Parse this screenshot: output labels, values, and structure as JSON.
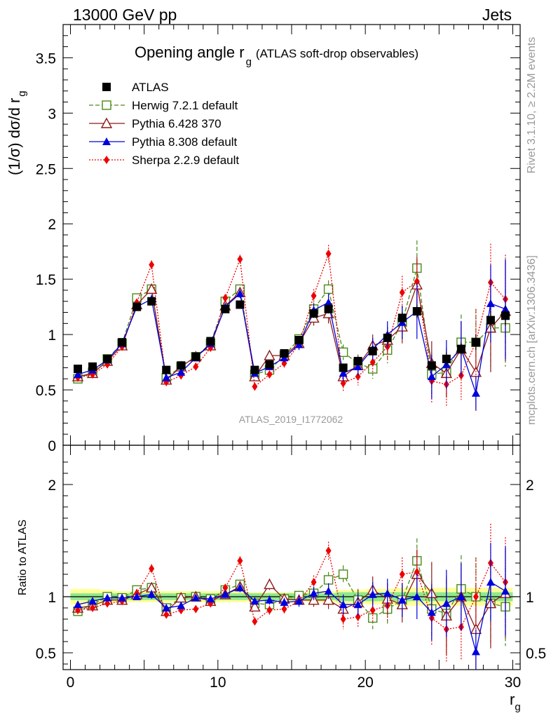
{
  "header": {
    "process": "13000 GeV pp",
    "category": "Jets"
  },
  "side_text": {
    "rivet": "Rivet 3.1.10, ≥ 2.2M events",
    "mcplots": "mcplots.cern.ch [arXiv:1306.3436]"
  },
  "watermark": "ATLAS_2019_I1772062",
  "chart_data": [
    {
      "type": "scatter",
      "title_main": "Opening angle r",
      "title_sub": "g",
      "title_tail": "(ATLAS soft-drop observables)",
      "ylabel": "(1/σ) dσ/d r",
      "ylabel_sub": "g",
      "xlim": [
        -0.5,
        30.5
      ],
      "ylim": [
        0,
        3.8
      ],
      "yticks": [
        0,
        0.5,
        1,
        1.5,
        2,
        2.5,
        3,
        3.5
      ],
      "ytick_labels": [
        "0",
        "0.5",
        "1",
        "1.5",
        "2",
        "2.5",
        "3",
        "3.5"
      ],
      "x": [
        0.5,
        1.5,
        2.5,
        3.5,
        4.5,
        5.5,
        6.5,
        7.5,
        8.5,
        9.5,
        10.5,
        11.5,
        12.5,
        13.5,
        14.5,
        15.5,
        16.5,
        17.5,
        18.5,
        19.5,
        20.5,
        21.5,
        22.5,
        23.5,
        24.5,
        25.5,
        26.5,
        27.5,
        28.5,
        29.5
      ],
      "legend": [
        {
          "name": "ATLAS",
          "color": "#000000",
          "marker": "square-filled",
          "dash": ""
        },
        {
          "name": "Herwig 7.2.1 default",
          "color": "#4a8a1a",
          "marker": "square-open",
          "dash": "6,3"
        },
        {
          "name": "Pythia 6.428 370",
          "color": "#8b1a1a",
          "marker": "triangle-open",
          "dash": ""
        },
        {
          "name": "Pythia 8.308 default",
          "color": "#0000dd",
          "marker": "triangle-filled",
          "dash": ""
        },
        {
          "name": "Sherpa 2.2.9 default",
          "color": "#ee0000",
          "marker": "diamond-filled",
          "dash": "2,2"
        }
      ],
      "series": [
        {
          "name": "ATLAS",
          "values": [
            0.69,
            0.71,
            0.78,
            0.93,
            1.25,
            1.3,
            0.68,
            0.72,
            0.8,
            0.94,
            1.23,
            1.27,
            0.68,
            0.73,
            0.83,
            0.95,
            1.19,
            1.23,
            0.7,
            0.76,
            0.85,
            0.97,
            1.15,
            1.21,
            0.72,
            0.78,
            0.87,
            0.93,
            1.13,
            1.17
          ],
          "err": [
            0.02,
            0.02,
            0.02,
            0.02,
            0.03,
            0.03,
            0.02,
            0.02,
            0.02,
            0.02,
            0.03,
            0.03,
            0.02,
            0.02,
            0.02,
            0.03,
            0.04,
            0.04,
            0.03,
            0.03,
            0.04,
            0.05,
            0.05,
            0.06,
            0.05,
            0.06,
            0.06,
            0.07,
            0.08,
            0.09
          ]
        },
        {
          "name": "Herwig 7.2.1 default",
          "values": [
            0.6,
            0.66,
            0.78,
            0.92,
            1.33,
            1.41,
            0.61,
            0.71,
            0.8,
            0.92,
            1.3,
            1.41,
            0.64,
            0.68,
            0.81,
            0.96,
            1.23,
            1.41,
            0.84,
            0.74,
            0.69,
            0.86,
            1.11,
            1.6,
            0.64,
            0.66,
            0.93,
            0.93,
            1.06,
            1.06
          ],
          "err": [
            0.02,
            0.02,
            0.02,
            0.02,
            0.03,
            0.04,
            0.02,
            0.02,
            0.02,
            0.02,
            0.03,
            0.04,
            0.02,
            0.03,
            0.03,
            0.04,
            0.06,
            0.08,
            0.07,
            0.08,
            0.09,
            0.12,
            0.15,
            0.25,
            0.2,
            0.22,
            0.25,
            0.3,
            0.35,
            0.35
          ]
        },
        {
          "name": "Pythia 6.428 370",
          "values": [
            0.62,
            0.65,
            0.76,
            0.9,
            1.27,
            1.41,
            0.59,
            0.71,
            0.8,
            0.9,
            1.26,
            1.38,
            0.62,
            0.81,
            0.81,
            0.92,
            1.15,
            1.19,
            0.62,
            0.72,
            0.9,
            0.95,
            1.07,
            1.45,
            0.74,
            0.65,
            0.87,
            0.66,
            1.06,
            1.21
          ],
          "err": [
            0.02,
            0.02,
            0.02,
            0.02,
            0.03,
            0.04,
            0.02,
            0.02,
            0.02,
            0.02,
            0.03,
            0.04,
            0.02,
            0.04,
            0.04,
            0.05,
            0.07,
            0.09,
            0.08,
            0.09,
            0.1,
            0.12,
            0.15,
            0.25,
            0.2,
            0.22,
            0.25,
            0.35,
            0.4,
            0.45
          ]
        },
        {
          "name": "Pythia 8.308 default",
          "values": [
            0.64,
            0.68,
            0.77,
            0.92,
            1.25,
            1.32,
            0.61,
            0.66,
            0.79,
            0.92,
            1.25,
            1.37,
            0.65,
            0.71,
            0.79,
            0.91,
            1.22,
            1.29,
            0.65,
            0.71,
            0.87,
            1.0,
            1.11,
            1.21,
            0.62,
            0.73,
            0.87,
            0.47,
            1.28,
            1.23
          ],
          "err": [
            0.02,
            0.02,
            0.02,
            0.02,
            0.03,
            0.04,
            0.02,
            0.02,
            0.02,
            0.02,
            0.03,
            0.04,
            0.02,
            0.03,
            0.04,
            0.05,
            0.06,
            0.08,
            0.07,
            0.08,
            0.1,
            0.12,
            0.15,
            0.25,
            0.2,
            0.22,
            0.25,
            0.15,
            0.35,
            0.45
          ]
        },
        {
          "name": "Sherpa 2.2.9 default",
          "values": [
            0.61,
            0.64,
            0.73,
            0.89,
            1.29,
            1.63,
            0.57,
            0.63,
            0.71,
            0.88,
            1.33,
            1.68,
            0.53,
            0.64,
            0.74,
            0.91,
            1.35,
            1.73,
            0.56,
            0.62,
            0.75,
            0.89,
            1.38,
            1.48,
            0.58,
            0.55,
            0.63,
            0.93,
            1.47,
            1.32
          ],
          "err": [
            0.02,
            0.02,
            0.02,
            0.02,
            0.03,
            0.04,
            0.02,
            0.02,
            0.02,
            0.02,
            0.03,
            0.04,
            0.02,
            0.03,
            0.04,
            0.05,
            0.06,
            0.08,
            0.07,
            0.08,
            0.1,
            0.12,
            0.15,
            0.2,
            0.2,
            0.2,
            0.22,
            0.3,
            0.35,
            0.4
          ]
        }
      ]
    },
    {
      "type": "scatter",
      "ylabel": "Ratio to ATLAS",
      "xlabel": "r",
      "xlabel_sub": "g",
      "xlim": [
        -0.5,
        30.5
      ],
      "ylim": [
        0.35,
        2.35
      ],
      "xticks": [
        0,
        10,
        20,
        30
      ],
      "xtick_labels": [
        "0",
        "10",
        "20",
        "30"
      ],
      "yticks": [
        0.5,
        1,
        2
      ],
      "ytick_labels": [
        "0.5",
        "1",
        "2"
      ],
      "band_inner": [
        0.03,
        0.03,
        0.03,
        0.03,
        0.03,
        0.03,
        0.03,
        0.03,
        0.03,
        0.03,
        0.03,
        0.03,
        0.03,
        0.03,
        0.03,
        0.03,
        0.03,
        0.03,
        0.04,
        0.04,
        0.04,
        0.04,
        0.04,
        0.04,
        0.04,
        0.04,
        0.04,
        0.04,
        0.04,
        0.04
      ],
      "band_outer": [
        0.07,
        0.07,
        0.06,
        0.05,
        0.05,
        0.05,
        0.05,
        0.05,
        0.05,
        0.05,
        0.05,
        0.05,
        0.04,
        0.04,
        0.04,
        0.04,
        0.05,
        0.05,
        0.06,
        0.06,
        0.07,
        0.07,
        0.08,
        0.08,
        0.08,
        0.08,
        0.08,
        0.08,
        0.08,
        0.08
      ],
      "series": [
        {
          "name": "Herwig 7.2.1 default",
          "values": [
            0.87,
            0.93,
            1.0,
            0.99,
            1.06,
            1.08,
            0.9,
            0.99,
            1.0,
            0.98,
            1.06,
            1.11,
            0.94,
            0.93,
            0.98,
            1.01,
            1.03,
            1.15,
            1.2,
            0.97,
            0.81,
            0.89,
            0.97,
            1.32,
            0.89,
            0.85,
            1.07,
            1.0,
            0.94,
            0.91
          ],
          "err": [
            0.03,
            0.03,
            0.03,
            0.03,
            0.03,
            0.04,
            0.03,
            0.03,
            0.03,
            0.03,
            0.03,
            0.04,
            0.03,
            0.04,
            0.04,
            0.04,
            0.05,
            0.07,
            0.08,
            0.1,
            0.1,
            0.13,
            0.15,
            0.2,
            0.25,
            0.3,
            0.3,
            0.35,
            0.35,
            0.35
          ]
        },
        {
          "name": "Pythia 6.428 370",
          "values": [
            0.9,
            0.92,
            0.97,
            0.97,
            1.02,
            1.08,
            0.87,
            0.99,
            1.0,
            0.96,
            1.02,
            1.09,
            0.91,
            1.11,
            0.98,
            0.97,
            0.97,
            0.97,
            0.89,
            0.95,
            1.06,
            0.98,
            0.93,
            1.2,
            1.03,
            0.83,
            1.0,
            0.71,
            0.94,
            1.03
          ],
          "err": [
            0.03,
            0.03,
            0.03,
            0.03,
            0.03,
            0.04,
            0.03,
            0.03,
            0.03,
            0.03,
            0.03,
            0.04,
            0.03,
            0.05,
            0.05,
            0.05,
            0.06,
            0.08,
            0.1,
            0.11,
            0.12,
            0.14,
            0.16,
            0.22,
            0.28,
            0.35,
            0.3,
            0.4,
            0.4,
            0.4
          ]
        },
        {
          "name": "Pythia 8.308 default",
          "values": [
            0.93,
            0.96,
            0.99,
            0.99,
            1.0,
            1.02,
            0.9,
            0.92,
            0.99,
            0.98,
            1.02,
            1.08,
            0.96,
            0.97,
            0.95,
            0.96,
            1.03,
            1.05,
            0.93,
            0.93,
            1.02,
            1.03,
            0.97,
            1.0,
            0.86,
            0.94,
            1.0,
            0.51,
            1.13,
            1.05
          ],
          "err": [
            0.03,
            0.03,
            0.03,
            0.03,
            0.03,
            0.04,
            0.03,
            0.03,
            0.03,
            0.03,
            0.03,
            0.04,
            0.03,
            0.04,
            0.04,
            0.05,
            0.06,
            0.07,
            0.09,
            0.1,
            0.11,
            0.13,
            0.15,
            0.2,
            0.25,
            0.3,
            0.3,
            0.2,
            0.35,
            0.4
          ]
        },
        {
          "name": "Sherpa 2.2.9 default",
          "values": [
            0.88,
            0.9,
            0.94,
            0.96,
            1.03,
            1.25,
            0.84,
            0.88,
            0.89,
            0.94,
            1.08,
            1.32,
            0.78,
            0.88,
            0.89,
            0.96,
            1.13,
            1.41,
            0.8,
            0.82,
            0.88,
            0.92,
            1.2,
            1.22,
            0.81,
            0.71,
            0.73,
            1.0,
            1.3,
            1.13
          ],
          "err": [
            0.03,
            0.03,
            0.03,
            0.03,
            0.03,
            0.04,
            0.03,
            0.03,
            0.03,
            0.03,
            0.03,
            0.04,
            0.03,
            0.04,
            0.04,
            0.05,
            0.06,
            0.08,
            0.09,
            0.1,
            0.11,
            0.13,
            0.15,
            0.2,
            0.25,
            0.3,
            0.3,
            0.35,
            0.35,
            0.4
          ]
        }
      ]
    }
  ]
}
